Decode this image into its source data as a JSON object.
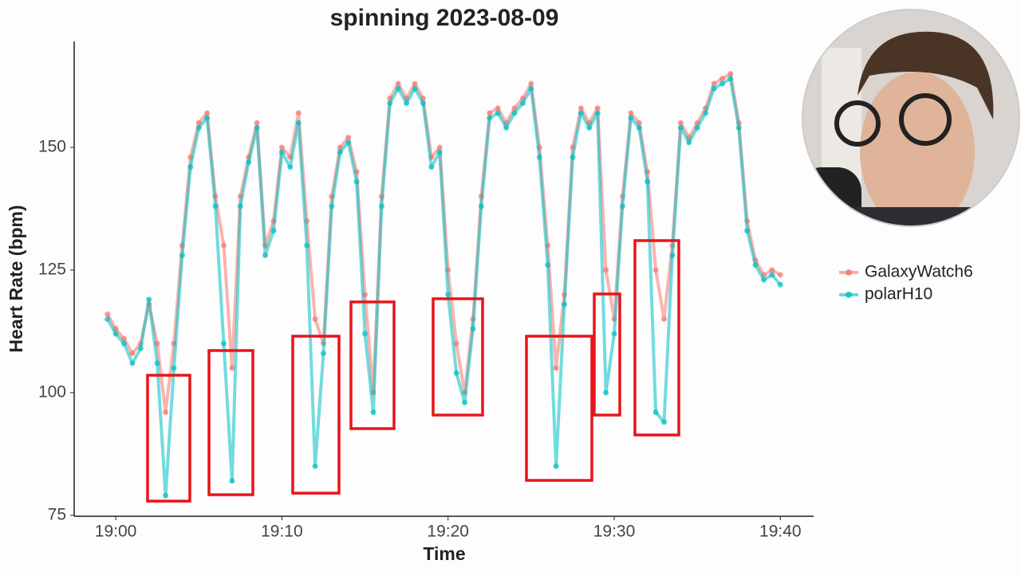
{
  "chart_data": {
    "type": "line",
    "title": "spinning 2023-08-09",
    "x_label": "Time",
    "y_label": "Heart Rate (bpm)",
    "x": [
      1139.5,
      1140,
      1140.5,
      1141,
      1141.5,
      1142,
      1142.5,
      1143,
      1143.5,
      1144,
      1144.5,
      1145,
      1145.5,
      1146,
      1146.5,
      1147,
      1147.5,
      1148,
      1148.5,
      1149,
      1149.5,
      1150,
      1150.5,
      1151,
      1151.5,
      1152,
      1152.5,
      1153,
      1153.5,
      1154,
      1154.5,
      1155,
      1155.5,
      1156,
      1156.5,
      1157,
      1157.5,
      1158,
      1158.5,
      1159,
      1159.5,
      1160,
      1160.5,
      1161,
      1161.5,
      1162,
      1162.5,
      1163,
      1163.5,
      1164,
      1164.5,
      1165,
      1165.5,
      1166,
      1166.5,
      1167,
      1167.5,
      1168,
      1168.5,
      1169,
      1169.5,
      1170,
      1170.5,
      1171,
      1171.5,
      1172,
      1172.5,
      1173,
      1173.5,
      1174,
      1174.5,
      1175,
      1175.5,
      1176,
      1176.5,
      1177,
      1177.5,
      1178,
      1178.5,
      1179,
      1179.5,
      1180
    ],
    "series": [
      {
        "name": "GalaxyWatch6",
        "color": "#F8766D",
        "values": [
          116,
          113,
          111,
          108,
          110,
          118,
          110,
          96,
          110,
          130,
          148,
          155,
          157,
          140,
          130,
          105,
          140,
          148,
          155,
          130,
          135,
          150,
          148,
          157,
          135,
          115,
          110,
          140,
          150,
          152,
          145,
          120,
          100,
          140,
          160,
          163,
          160,
          163,
          160,
          148,
          150,
          125,
          110,
          100,
          115,
          140,
          157,
          158,
          155,
          158,
          160,
          163,
          150,
          130,
          105,
          120,
          150,
          158,
          155,
          158,
          125,
          115,
          140,
          157,
          155,
          145,
          125,
          115,
          130,
          155,
          152,
          155,
          158,
          163,
          164,
          165,
          155,
          135,
          127,
          124,
          125,
          124
        ]
      },
      {
        "name": "polarH10",
        "color": "#00BFC4",
        "values": [
          115,
          112,
          110,
          106,
          109,
          119,
          106,
          79,
          105,
          128,
          146,
          154,
          156,
          138,
          110,
          82,
          138,
          147,
          154,
          128,
          133,
          149,
          146,
          155,
          130,
          85,
          108,
          138,
          149,
          151,
          143,
          112,
          96,
          138,
          159,
          162,
          159,
          162,
          159,
          146,
          149,
          120,
          104,
          98,
          113,
          138,
          156,
          157,
          154,
          157,
          159,
          162,
          148,
          126,
          85,
          118,
          148,
          157,
          154,
          157,
          100,
          112,
          138,
          156,
          154,
          143,
          96,
          94,
          128,
          154,
          151,
          154,
          157,
          162,
          163,
          164,
          154,
          133,
          126,
          123,
          124,
          122
        ]
      }
    ],
    "xlim": [
      1137.5,
      1182
    ],
    "xticks": [
      {
        "value": 1140,
        "label": "19:00"
      },
      {
        "value": 1150,
        "label": "19:10"
      },
      {
        "value": 1160,
        "label": "19:20"
      },
      {
        "value": 1170,
        "label": "19:30"
      },
      {
        "value": 1180,
        "label": "19:40"
      }
    ],
    "ylim": [
      74.8,
      171.6
    ],
    "yticks": [
      75,
      100,
      125,
      150
    ]
  }
}
